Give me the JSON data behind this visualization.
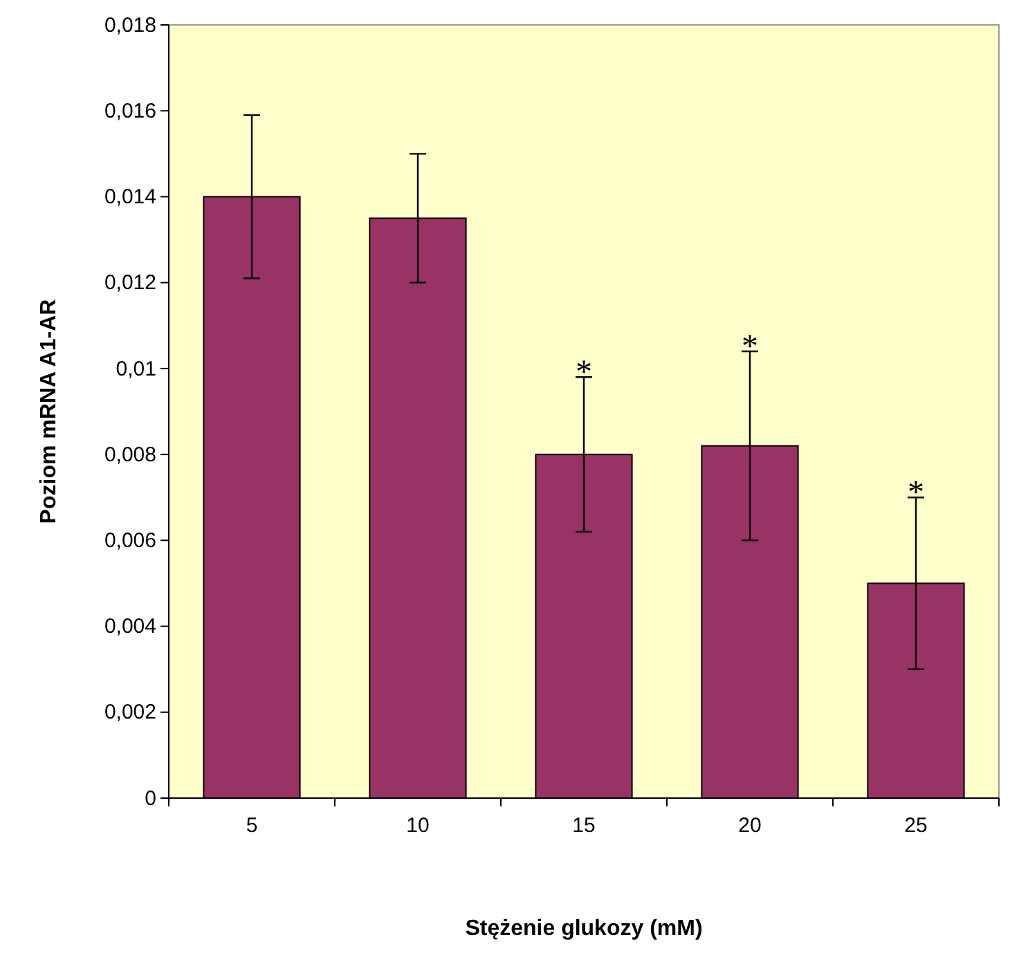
{
  "chart_data": {
    "type": "bar",
    "xlabel": "Stężenie glukozy (mM)",
    "ylabel": "Poziom mRNA A1-AR",
    "categories": [
      "5",
      "10",
      "15",
      "20",
      "25"
    ],
    "values": [
      0.014,
      0.0135,
      0.008,
      0.0082,
      0.005
    ],
    "errors": [
      0.0019,
      0.0015,
      0.0018,
      0.0022,
      0.002
    ],
    "color": "#993366",
    "ylim": [
      0,
      0.018
    ],
    "yticks": [
      0,
      {
        "value": 0.002,
        "label": "0,002"
      },
      {
        "value": 0.004,
        "label": "0,004"
      },
      {
        "value": 0.006,
        "label": "0,006"
      },
      {
        "value": 0.008,
        "label": "0,008"
      },
      {
        "value": 0.01,
        "label": "0,01"
      },
      {
        "value": 0.012,
        "label": "0,012"
      },
      {
        "value": 0.014,
        "label": "0,014"
      },
      {
        "value": 0.016,
        "label": "0,016"
      },
      {
        "value": 0.018,
        "label": "0,018"
      }
    ],
    "annotations": [
      {
        "text": "*",
        "x": "15",
        "y": 0.0098
      },
      {
        "text": "*",
        "x": "20",
        "y": 0.0104
      },
      {
        "text": "*",
        "x": "25",
        "y": 0.007
      }
    ],
    "grid": false
  }
}
